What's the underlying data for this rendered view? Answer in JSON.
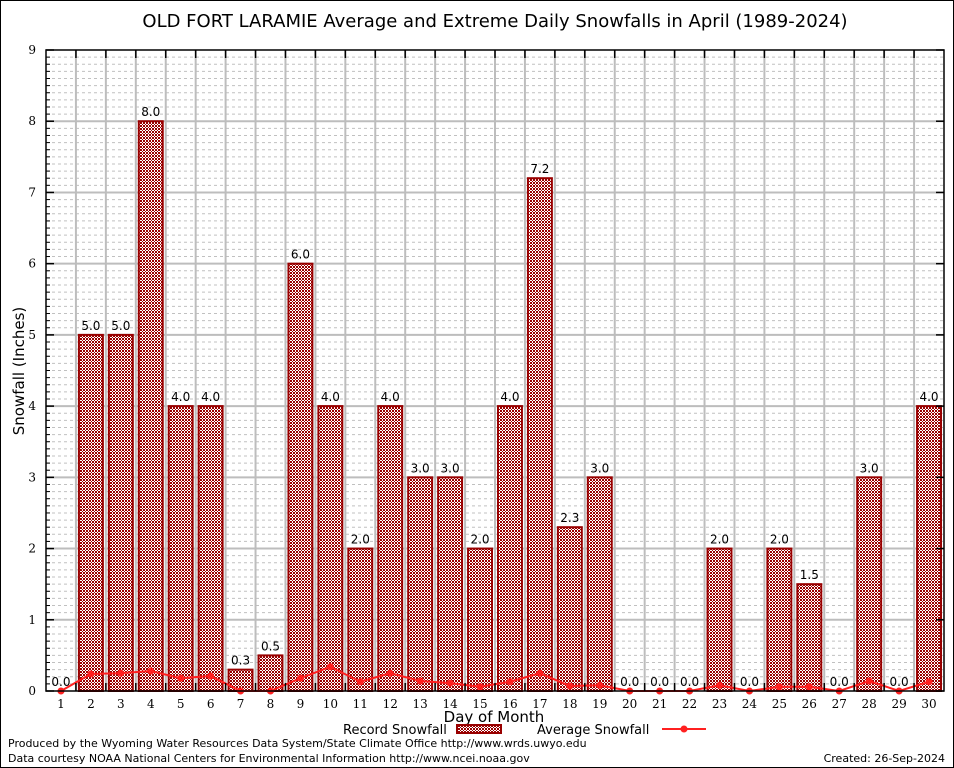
{
  "chart_data": {
    "type": "bar",
    "title": "OLD FORT LARAMIE Average and Extreme Daily Snowfalls in April (1989-2024)",
    "xlabel": "Day of Month",
    "ylabel": "Snowfall (Inches)",
    "ylim": [
      0,
      9
    ],
    "yticks": [
      "0",
      "1",
      "2",
      "3",
      "4",
      "5",
      "6",
      "7",
      "8",
      "9"
    ],
    "grid": true,
    "categories": [
      "1",
      "2",
      "3",
      "4",
      "5",
      "6",
      "7",
      "8",
      "9",
      "10",
      "11",
      "12",
      "13",
      "14",
      "15",
      "16",
      "17",
      "18",
      "19",
      "20",
      "21",
      "22",
      "23",
      "24",
      "25",
      "26",
      "27",
      "28",
      "29",
      "30"
    ],
    "series": [
      {
        "name": "Record Snowfall",
        "kind": "bar",
        "color": "#990000",
        "values": [
          0.0,
          5.0,
          5.0,
          8.0,
          4.0,
          4.0,
          0.3,
          0.5,
          6.0,
          4.0,
          2.0,
          4.0,
          3.0,
          3.0,
          2.0,
          4.0,
          7.2,
          2.3,
          3.0,
          0.0,
          0.0,
          0.0,
          2.0,
          0.0,
          2.0,
          1.5,
          0.0,
          3.0,
          0.0,
          4.0
        ],
        "labels": [
          "0.0",
          "5.0",
          "5.0",
          "8.0",
          "4.0",
          "4.0",
          "0.3",
          "0.5",
          "6.0",
          "4.0",
          "2.0",
          "4.0",
          "3.0",
          "3.0",
          "2.0",
          "4.0",
          "7.2",
          "2.3",
          "3.0",
          "0.0",
          "0.0",
          "0.0",
          "2.0",
          "0.0",
          "2.0",
          "1.5",
          "0.0",
          "3.0",
          "0.0",
          "4.0"
        ]
      },
      {
        "name": "Average Snowfall",
        "kind": "line",
        "color": "#ff2020",
        "values": [
          0.0,
          0.24,
          0.25,
          0.28,
          0.18,
          0.21,
          0.0,
          0.0,
          0.18,
          0.34,
          0.13,
          0.25,
          0.14,
          0.11,
          0.06,
          0.13,
          0.25,
          0.07,
          0.08,
          0.0,
          0.0,
          0.0,
          0.08,
          0.0,
          0.06,
          0.06,
          0.0,
          0.14,
          0.0,
          0.13
        ]
      }
    ],
    "legend": {
      "position": "bottom-center",
      "entries": [
        "Record Snowfall",
        "Average Snowfall"
      ]
    }
  },
  "footer": {
    "produced_by": "Produced by the Wyoming Water Resources Data System/State Climate Office http://www.wrds.uwyo.edu",
    "data_courtesy": "Data courtesy NOAA National Centers for Environmental Information http://www.ncei.noaa.gov",
    "created": "Created: 26-Sep-2024"
  }
}
